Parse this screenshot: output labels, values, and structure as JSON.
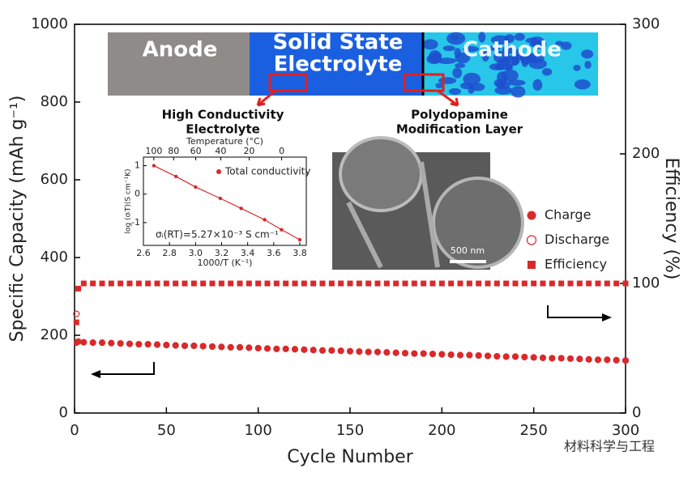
{
  "schematic": {
    "anode": "Anode",
    "electrolyte": [
      "Solid State",
      "Electrolyte"
    ],
    "cathode": "Cathode",
    "callouts": [
      [
        "High Conductivity",
        "Electrolyte"
      ],
      [
        "Polydopamine",
        "Modification Layer"
      ]
    ]
  },
  "sem": {
    "scale_bar": "500 nm"
  },
  "watermark": "材料科学与工程",
  "chart_data": [
    {
      "type": "scatter",
      "x_label": "Cycle Number",
      "y_label": "Specific Capacity (mAh g⁻¹)",
      "y2_label": "Efficiency (%)",
      "xlim": [
        0,
        300
      ],
      "xticks": [
        0,
        50,
        100,
        150,
        200,
        250,
        300
      ],
      "ylim": [
        0,
        1000
      ],
      "yticks": [
        0,
        200,
        400,
        600,
        800,
        1000
      ],
      "y2lim": [
        0,
        300
      ],
      "y2ticks": [
        0,
        100,
        200,
        300
      ],
      "legend": "right",
      "x": [
        1,
        2,
        5,
        10,
        15,
        20,
        25,
        30,
        35,
        40,
        45,
        50,
        55,
        60,
        65,
        70,
        75,
        80,
        85,
        90,
        95,
        100,
        105,
        110,
        115,
        120,
        125,
        130,
        135,
        140,
        145,
        150,
        155,
        160,
        165,
        170,
        175,
        180,
        185,
        190,
        195,
        200,
        205,
        210,
        215,
        220,
        225,
        230,
        235,
        240,
        245,
        250,
        255,
        260,
        265,
        270,
        275,
        280,
        285,
        290,
        295,
        300
      ],
      "series": [
        {
          "name": "Charge",
          "color": "#d9292b",
          "marker": "circle",
          "values": [
            180,
            183,
            182,
            181,
            181,
            180,
            179,
            178,
            177,
            177,
            176,
            175,
            174,
            173,
            173,
            172,
            171,
            170,
            169,
            169,
            168,
            167,
            166,
            165,
            165,
            164,
            163,
            162,
            161,
            161,
            160,
            159,
            158,
            157,
            157,
            156,
            155,
            154,
            153,
            153,
            152,
            151,
            150,
            149,
            149,
            148,
            147,
            146,
            145,
            145,
            144,
            143,
            142,
            141,
            141,
            140,
            139,
            138,
            137,
            137,
            136,
            135
          ]
        },
        {
          "name": "Discharge",
          "color": "#d9292b",
          "marker": "open-circle",
          "values": [
            255,
            184,
            182,
            181,
            181,
            180,
            179,
            178,
            177,
            177,
            176,
            175,
            174,
            173,
            173,
            172,
            171,
            170,
            169,
            169,
            168,
            167,
            166,
            165,
            165,
            164,
            163,
            162,
            161,
            161,
            160,
            159,
            158,
            157,
            157,
            156,
            155,
            154,
            153,
            153,
            152,
            151,
            150,
            149,
            149,
            148,
            147,
            146,
            145,
            145,
            144,
            143,
            142,
            141,
            141,
            140,
            139,
            138,
            137,
            137,
            136,
            135
          ]
        },
        {
          "name": "Efficiency",
          "color": "#d9292b",
          "marker": "square",
          "axis": "y2",
          "values": [
            70,
            96,
            100,
            100,
            100,
            100,
            100,
            100,
            100,
            100,
            100,
            100,
            100,
            100,
            100,
            100,
            100,
            100,
            100,
            100,
            100,
            100,
            100,
            100,
            100,
            100,
            100,
            100,
            100,
            100,
            100,
            100,
            100,
            100,
            100,
            100,
            100,
            100,
            100,
            100,
            100,
            100,
            100,
            100,
            100,
            100,
            100,
            100,
            100,
            100,
            100,
            100,
            100,
            100,
            100,
            100,
            100,
            100,
            100,
            100,
            100,
            100
          ]
        }
      ]
    },
    {
      "type": "scatter",
      "x_label": "1000/T (K⁻¹)",
      "x2_label": "Temperature (°C)",
      "y_label": "log (σᵢT)(S cm⁻¹K)",
      "xlim": [
        2.6,
        3.85
      ],
      "xticks": [
        2.6,
        2.8,
        {
          "value": 3,
          "label": "3.0"
        },
        3.2,
        3.4,
        3.6,
        3.8
      ],
      "x2ticks": [
        100,
        80,
        60,
        40,
        20,
        0
      ],
      "ylim": [
        -1.8,
        1.3
      ],
      "yticks": [
        -1,
        0,
        1
      ],
      "legend": "upper right",
      "annotation": "σᵢ(RT)=5.27×10⁻³ S cm⁻¹",
      "x": [
        2.68,
        2.85,
        3.0,
        3.19,
        3.35,
        3.53,
        3.66,
        3.8
      ],
      "series": [
        {
          "name": "Total conductivity",
          "color": "#d9292b",
          "values": [
            1.0,
            0.62,
            0.25,
            -0.15,
            -0.5,
            -0.9,
            -1.25,
            -1.6
          ]
        }
      ]
    }
  ]
}
